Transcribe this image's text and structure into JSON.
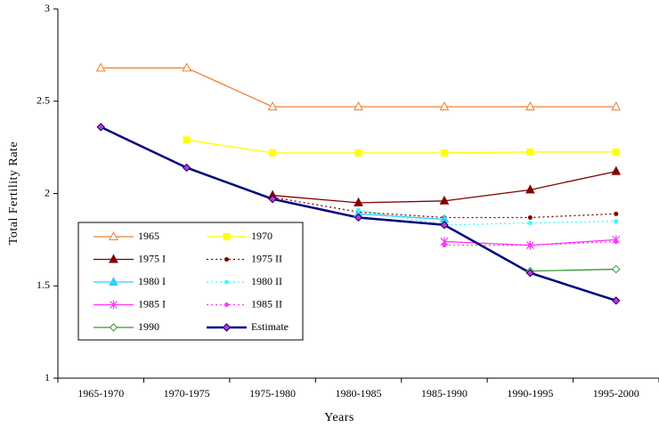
{
  "chart_data": {
    "type": "line",
    "x_label": "Years",
    "y_label": "Total Fertility Rate",
    "categories": [
      "1965-1970",
      "1970-1975",
      "1975-1980",
      "1980-1985",
      "1985-1990",
      "1990-1995",
      "1995-2000"
    ],
    "ylim": [
      1,
      3
    ],
    "yticks": [
      1,
      1.5,
      2,
      2.5,
      3
    ],
    "legend": "lower left",
    "series": [
      {
        "name": "1965",
        "color": "#f08030",
        "marker": "triangle-open",
        "dashed": false,
        "values": [
          2.68,
          2.68,
          2.47,
          2.47,
          2.47,
          2.47,
          2.47
        ]
      },
      {
        "name": "1970",
        "color": "#ffff00",
        "marker": "square",
        "dashed": false,
        "values": [
          null,
          2.29,
          2.22,
          2.22,
          2.22,
          2.225,
          2.225
        ]
      },
      {
        "name": "1975 I",
        "color": "#800000",
        "marker": "triangle",
        "dashed": false,
        "values": [
          null,
          null,
          1.99,
          1.95,
          1.96,
          2.02,
          2.12
        ]
      },
      {
        "name": "1975 II",
        "color": "#800000",
        "marker": "circle",
        "dashed": true,
        "values": [
          null,
          null,
          1.98,
          1.9,
          1.87,
          1.87,
          1.89
        ]
      },
      {
        "name": "1980 I",
        "color": "#33ccff",
        "marker": "triangle",
        "dashed": false,
        "values": [
          null,
          null,
          null,
          1.89,
          1.86,
          null,
          null
        ]
      },
      {
        "name": "1980 II",
        "color": "#33ffff",
        "marker": "circle",
        "dashed": true,
        "values": [
          null,
          null,
          null,
          1.91,
          1.83,
          1.84,
          1.85
        ]
      },
      {
        "name": "1985 I",
        "color": "#ff33ff",
        "marker": "star",
        "dashed": false,
        "values": [
          null,
          null,
          null,
          null,
          1.74,
          1.72,
          1.75
        ]
      },
      {
        "name": "1985 II",
        "color": "#ff33ff",
        "marker": "circle",
        "dashed": true,
        "values": [
          null,
          null,
          null,
          null,
          1.72,
          1.72,
          1.74
        ]
      },
      {
        "name": "1990",
        "color": "#339933",
        "marker": "diamond-open",
        "dashed": false,
        "values": [
          null,
          null,
          null,
          null,
          null,
          1.58,
          1.59
        ]
      },
      {
        "name": "Estimate",
        "color": "#000080",
        "marker": "diamond",
        "marker_color": "#cc33cc",
        "dashed": false,
        "values": [
          2.36,
          2.14,
          1.97,
          1.87,
          1.83,
          1.57,
          1.42
        ]
      }
    ]
  }
}
